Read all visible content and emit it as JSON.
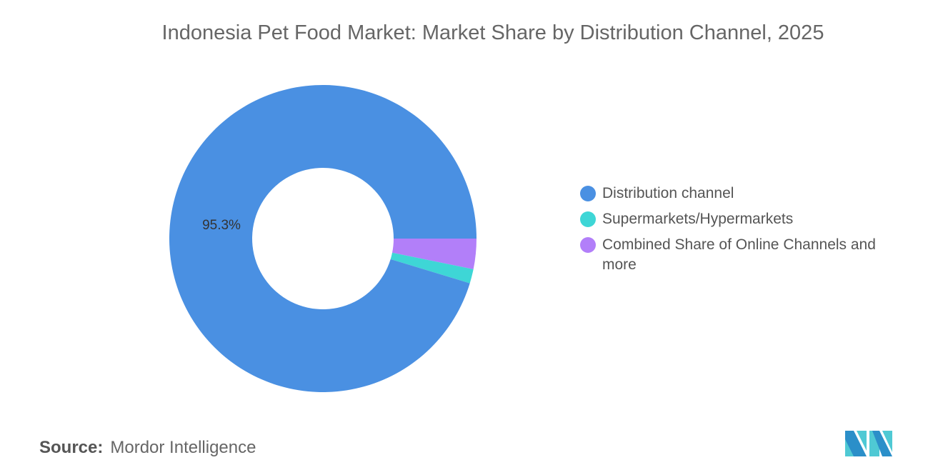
{
  "chart_data": {
    "type": "pie",
    "donut": true,
    "title": "Indonesia Pet Food Market: Market Share by Distribution Channel, 2025",
    "slices": [
      {
        "name": "Combined Share of Online Channels and more",
        "value": 3.2,
        "color": "#b27ff9"
      },
      {
        "name": "Supermarkets/Hypermarkets",
        "value": 1.5,
        "color": "#3ed6d6"
      },
      {
        "name": "Distribution channel",
        "value": 95.3,
        "color": "#4a90e2",
        "label": "95.3%"
      }
    ],
    "legend": [
      {
        "name": "Distribution channel",
        "color": "#4a90e2"
      },
      {
        "name": "Supermarkets/Hypermarkets",
        "color": "#3ed6d6"
      },
      {
        "name": "Combined Share of Online Channels and more",
        "color": "#b27ff9"
      }
    ],
    "legend_position": "right"
  },
  "source": {
    "label": "Source:",
    "value": "Mordor Intelligence"
  },
  "logo": {
    "text": "Mordor Intelligence logo"
  }
}
